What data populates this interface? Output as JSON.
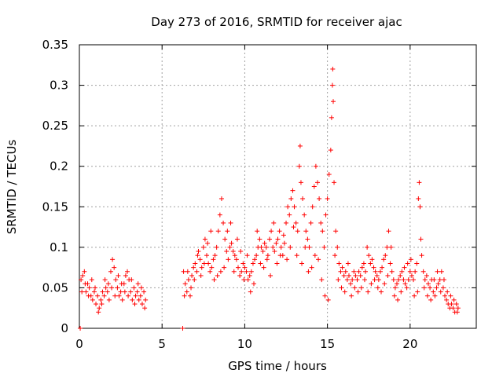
{
  "chart_data": {
    "type": "scatter",
    "title": "Day 273 of 2016, SRMTID for receiver ajac",
    "xlabel": "GPS time / hours",
    "ylabel": "SRMTID / TECUs",
    "xlim": [
      0,
      24
    ],
    "ylim": [
      0,
      0.35
    ],
    "xticks": [
      0,
      5,
      10,
      15,
      20
    ],
    "yticks": [
      0,
      0.05,
      0.1,
      0.15,
      0.2,
      0.25,
      0.3,
      0.35
    ],
    "xtick_labels": [
      "0",
      "5",
      "10",
      "15",
      "20"
    ],
    "ytick_labels": [
      "0",
      "0.05",
      "0.1",
      "0.15",
      "0.2",
      "0.25",
      "0.3",
      "0.35"
    ],
    "grid": true,
    "marker": "+",
    "series_color": "#ff0000",
    "series": [
      {
        "name": "SRMTID",
        "points": [
          [
            0.05,
            0.0
          ],
          [
            6.25,
            0.0
          ],
          [
            0.1,
            0.06
          ],
          [
            0.2,
            0.065
          ],
          [
            0.3,
            0.07
          ],
          [
            0.4,
            0.045
          ],
          [
            0.5,
            0.055
          ],
          [
            0.6,
            0.05
          ],
          [
            0.7,
            0.04
          ],
          [
            0.8,
            0.035
          ],
          [
            0.9,
            0.045
          ],
          [
            1.0,
            0.03
          ],
          [
            1.1,
            0.04
          ],
          [
            1.2,
            0.025
          ],
          [
            1.3,
            0.035
          ],
          [
            1.4,
            0.045
          ],
          [
            1.5,
            0.04
          ],
          [
            1.6,
            0.05
          ],
          [
            1.7,
            0.045
          ],
          [
            1.8,
            0.035
          ],
          [
            1.9,
            0.07
          ],
          [
            2.0,
            0.085
          ],
          [
            2.1,
            0.075
          ],
          [
            2.2,
            0.06
          ],
          [
            2.3,
            0.05
          ],
          [
            2.4,
            0.04
          ],
          [
            2.5,
            0.045
          ],
          [
            2.6,
            0.035
          ],
          [
            2.7,
            0.055
          ],
          [
            2.8,
            0.065
          ],
          [
            2.9,
            0.07
          ],
          [
            3.0,
            0.06
          ],
          [
            3.1,
            0.045
          ],
          [
            3.2,
            0.035
          ],
          [
            3.3,
            0.05
          ],
          [
            3.4,
            0.04
          ],
          [
            3.5,
            0.045
          ],
          [
            3.6,
            0.035
          ],
          [
            3.7,
            0.04
          ],
          [
            3.8,
            0.03
          ],
          [
            3.9,
            0.045
          ],
          [
            4.0,
            0.035
          ],
          [
            0.15,
            0.045
          ],
          [
            0.35,
            0.055
          ],
          [
            0.55,
            0.04
          ],
          [
            0.75,
            0.06
          ],
          [
            0.95,
            0.05
          ],
          [
            1.15,
            0.02
          ],
          [
            1.35,
            0.03
          ],
          [
            1.55,
            0.06
          ],
          [
            1.75,
            0.055
          ],
          [
            1.95,
            0.05
          ],
          [
            2.15,
            0.04
          ],
          [
            2.35,
            0.065
          ],
          [
            2.55,
            0.055
          ],
          [
            2.75,
            0.045
          ],
          [
            2.95,
            0.04
          ],
          [
            3.15,
            0.06
          ],
          [
            3.35,
            0.03
          ],
          [
            3.55,
            0.055
          ],
          [
            3.75,
            0.05
          ],
          [
            3.95,
            0.025
          ],
          [
            6.3,
            0.07
          ],
          [
            6.4,
            0.055
          ],
          [
            6.5,
            0.045
          ],
          [
            6.6,
            0.06
          ],
          [
            6.7,
            0.04
          ],
          [
            6.8,
            0.065
          ],
          [
            6.9,
            0.075
          ],
          [
            7.0,
            0.08
          ],
          [
            7.1,
            0.07
          ],
          [
            7.2,
            0.095
          ],
          [
            7.3,
            0.085
          ],
          [
            7.4,
            0.075
          ],
          [
            7.5,
            0.1
          ],
          [
            7.6,
            0.11
          ],
          [
            7.7,
            0.09
          ],
          [
            7.8,
            0.08
          ],
          [
            7.9,
            0.07
          ],
          [
            8.0,
            0.075
          ],
          [
            8.1,
            0.085
          ],
          [
            8.2,
            0.09
          ],
          [
            8.3,
            0.1
          ],
          [
            8.4,
            0.12
          ],
          [
            8.5,
            0.14
          ],
          [
            8.6,
            0.16
          ],
          [
            8.7,
            0.13
          ],
          [
            8.8,
            0.11
          ],
          [
            8.9,
            0.095
          ],
          [
            9.0,
            0.085
          ],
          [
            9.1,
            0.1
          ],
          [
            9.2,
            0.105
          ],
          [
            9.3,
            0.095
          ],
          [
            9.4,
            0.09
          ],
          [
            9.5,
            0.085
          ],
          [
            9.6,
            0.075
          ],
          [
            9.7,
            0.065
          ],
          [
            9.8,
            0.07
          ],
          [
            9.9,
            0.08
          ],
          [
            10.0,
            0.075
          ],
          [
            10.1,
            0.07
          ],
          [
            10.2,
            0.06
          ],
          [
            10.3,
            0.065
          ],
          [
            10.4,
            0.07
          ],
          [
            10.5,
            0.08
          ],
          [
            10.6,
            0.085
          ],
          [
            10.7,
            0.09
          ],
          [
            10.8,
            0.1
          ],
          [
            10.9,
            0.11
          ],
          [
            11.0,
            0.1
          ],
          [
            11.1,
            0.095
          ],
          [
            11.2,
            0.105
          ],
          [
            11.3,
            0.1
          ],
          [
            11.4,
            0.09
          ],
          [
            11.5,
            0.11
          ],
          [
            11.6,
            0.12
          ],
          [
            11.7,
            0.1
          ],
          [
            11.8,
            0.095
          ],
          [
            11.9,
            0.105
          ],
          [
            12.0,
            0.11
          ],
          [
            12.1,
            0.12
          ],
          [
            12.2,
            0.1
          ],
          [
            12.3,
            0.09
          ],
          [
            12.4,
            0.105
          ],
          [
            12.5,
            0.13
          ],
          [
            12.6,
            0.15
          ],
          [
            12.7,
            0.14
          ],
          [
            12.8,
            0.16
          ],
          [
            12.9,
            0.17
          ],
          [
            13.0,
            0.15
          ],
          [
            13.1,
            0.13
          ],
          [
            13.2,
            0.12
          ],
          [
            13.3,
            0.2
          ],
          [
            13.35,
            0.225
          ],
          [
            13.4,
            0.18
          ],
          [
            13.5,
            0.16
          ],
          [
            13.6,
            0.14
          ],
          [
            13.7,
            0.12
          ],
          [
            13.8,
            0.11
          ],
          [
            13.9,
            0.1
          ],
          [
            14.0,
            0.13
          ],
          [
            14.1,
            0.15
          ],
          [
            14.2,
            0.175
          ],
          [
            14.3,
            0.2
          ],
          [
            14.4,
            0.18
          ],
          [
            14.5,
            0.16
          ],
          [
            14.6,
            0.13
          ],
          [
            14.7,
            0.12
          ],
          [
            14.8,
            0.1
          ],
          [
            14.9,
            0.14
          ],
          [
            15.0,
            0.16
          ],
          [
            15.1,
            0.19
          ],
          [
            15.2,
            0.22
          ],
          [
            15.25,
            0.26
          ],
          [
            15.3,
            0.3
          ],
          [
            15.32,
            0.32
          ],
          [
            15.35,
            0.28
          ],
          [
            15.4,
            0.18
          ],
          [
            15.5,
            0.12
          ],
          [
            15.6,
            0.1
          ],
          [
            15.7,
            0.08
          ],
          [
            15.8,
            0.07
          ],
          [
            15.9,
            0.075
          ],
          [
            16.0,
            0.065
          ],
          [
            16.1,
            0.07
          ],
          [
            16.2,
            0.06
          ],
          [
            16.3,
            0.065
          ],
          [
            16.4,
            0.055
          ],
          [
            16.5,
            0.06
          ],
          [
            16.6,
            0.07
          ],
          [
            16.7,
            0.065
          ],
          [
            16.8,
            0.06
          ],
          [
            16.9,
            0.07
          ],
          [
            17.0,
            0.065
          ],
          [
            17.1,
            0.075
          ],
          [
            17.2,
            0.08
          ],
          [
            17.3,
            0.07
          ],
          [
            17.4,
            0.1
          ],
          [
            17.5,
            0.09
          ],
          [
            17.6,
            0.08
          ],
          [
            17.7,
            0.085
          ],
          [
            17.8,
            0.075
          ],
          [
            17.9,
            0.07
          ],
          [
            18.0,
            0.065
          ],
          [
            18.1,
            0.06
          ],
          [
            18.2,
            0.07
          ],
          [
            18.3,
            0.075
          ],
          [
            18.4,
            0.085
          ],
          [
            18.5,
            0.09
          ],
          [
            18.6,
            0.1
          ],
          [
            18.7,
            0.12
          ],
          [
            18.8,
            0.08
          ],
          [
            18.9,
            0.07
          ],
          [
            19.0,
            0.06
          ],
          [
            19.1,
            0.05
          ],
          [
            19.2,
            0.055
          ],
          [
            19.3,
            0.06
          ],
          [
            19.4,
            0.065
          ],
          [
            19.5,
            0.07
          ],
          [
            19.6,
            0.06
          ],
          [
            19.7,
            0.055
          ],
          [
            19.8,
            0.05
          ],
          [
            19.9,
            0.06
          ],
          [
            20.0,
            0.07
          ],
          [
            20.1,
            0.065
          ],
          [
            20.2,
            0.06
          ],
          [
            20.3,
            0.07
          ],
          [
            20.4,
            0.08
          ],
          [
            20.5,
            0.16
          ],
          [
            20.55,
            0.18
          ],
          [
            20.6,
            0.15
          ],
          [
            20.7,
            0.09
          ],
          [
            20.8,
            0.07
          ],
          [
            20.9,
            0.06
          ],
          [
            21.0,
            0.065
          ],
          [
            21.1,
            0.055
          ],
          [
            21.2,
            0.05
          ],
          [
            21.3,
            0.06
          ],
          [
            21.4,
            0.045
          ],
          [
            21.5,
            0.04
          ],
          [
            21.6,
            0.05
          ],
          [
            21.7,
            0.055
          ],
          [
            21.8,
            0.06
          ],
          [
            21.9,
            0.07
          ],
          [
            22.0,
            0.05
          ],
          [
            22.1,
            0.04
          ],
          [
            22.2,
            0.035
          ],
          [
            22.3,
            0.03
          ],
          [
            22.4,
            0.025
          ],
          [
            22.5,
            0.03
          ],
          [
            22.6,
            0.025
          ],
          [
            22.7,
            0.02
          ],
          [
            22.8,
            0.03
          ],
          [
            22.9,
            0.025
          ],
          [
            6.35,
            0.04
          ],
          [
            6.55,
            0.07
          ],
          [
            6.75,
            0.05
          ],
          [
            6.95,
            0.06
          ],
          [
            7.15,
            0.09
          ],
          [
            7.35,
            0.065
          ],
          [
            7.55,
            0.08
          ],
          [
            7.75,
            0.105
          ],
          [
            7.95,
            0.12
          ],
          [
            8.15,
            0.06
          ],
          [
            8.35,
            0.065
          ],
          [
            8.55,
            0.07
          ],
          [
            8.75,
            0.075
          ],
          [
            8.95,
            0.12
          ],
          [
            9.15,
            0.13
          ],
          [
            9.35,
            0.07
          ],
          [
            9.55,
            0.11
          ],
          [
            9.75,
            0.095
          ],
          [
            9.95,
            0.06
          ],
          [
            10.15,
            0.09
          ],
          [
            10.35,
            0.045
          ],
          [
            10.55,
            0.055
          ],
          [
            10.75,
            0.12
          ],
          [
            10.95,
            0.08
          ],
          [
            11.15,
            0.075
          ],
          [
            11.35,
            0.085
          ],
          [
            11.55,
            0.065
          ],
          [
            11.75,
            0.13
          ],
          [
            11.95,
            0.08
          ],
          [
            12.15,
            0.09
          ],
          [
            12.35,
            0.115
          ],
          [
            12.55,
            0.085
          ],
          [
            12.75,
            0.1
          ],
          [
            12.95,
            0.125
          ],
          [
            13.15,
            0.09
          ],
          [
            13.45,
            0.08
          ],
          [
            13.65,
            0.1
          ],
          [
            13.85,
            0.07
          ],
          [
            14.05,
            0.075
          ],
          [
            14.25,
            0.09
          ],
          [
            14.45,
            0.085
          ],
          [
            14.65,
            0.06
          ],
          [
            14.85,
            0.04
          ],
          [
            15.05,
            0.035
          ],
          [
            15.45,
            0.09
          ],
          [
            15.65,
            0.06
          ],
          [
            15.85,
            0.05
          ],
          [
            16.05,
            0.045
          ],
          [
            16.25,
            0.08
          ],
          [
            16.45,
            0.04
          ],
          [
            16.65,
            0.05
          ],
          [
            16.85,
            0.045
          ],
          [
            17.05,
            0.05
          ],
          [
            17.25,
            0.06
          ],
          [
            17.45,
            0.045
          ],
          [
            17.65,
            0.055
          ],
          [
            17.85,
            0.06
          ],
          [
            18.05,
            0.05
          ],
          [
            18.25,
            0.045
          ],
          [
            18.45,
            0.055
          ],
          [
            18.65,
            0.065
          ],
          [
            18.85,
            0.1
          ],
          [
            19.05,
            0.04
          ],
          [
            19.25,
            0.035
          ],
          [
            19.45,
            0.045
          ],
          [
            19.65,
            0.075
          ],
          [
            19.85,
            0.08
          ],
          [
            20.05,
            0.085
          ],
          [
            20.25,
            0.04
          ],
          [
            20.45,
            0.045
          ],
          [
            20.65,
            0.11
          ],
          [
            20.85,
            0.05
          ],
          [
            21.05,
            0.04
          ],
          [
            21.25,
            0.035
          ],
          [
            21.45,
            0.06
          ],
          [
            21.65,
            0.07
          ],
          [
            21.85,
            0.045
          ],
          [
            22.05,
            0.06
          ],
          [
            22.25,
            0.045
          ],
          [
            22.45,
            0.04
          ],
          [
            22.65,
            0.035
          ],
          [
            22.85,
            0.02
          ]
        ]
      }
    ]
  }
}
